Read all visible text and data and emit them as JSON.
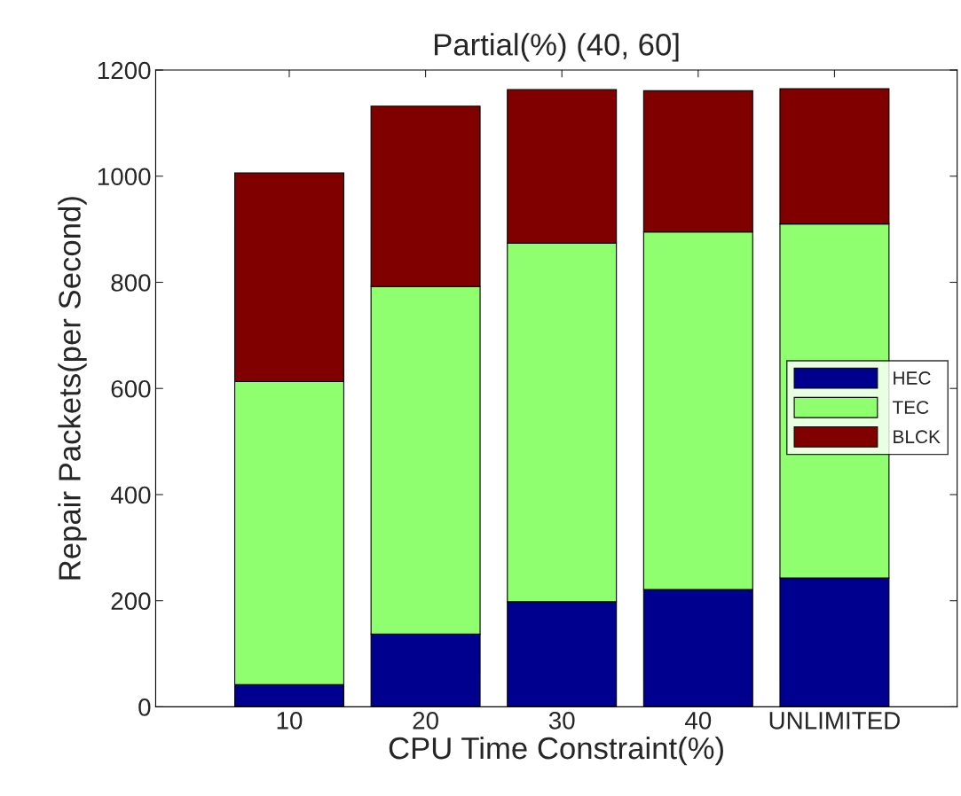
{
  "chart_data": {
    "type": "bar",
    "title": "Partial(%) (40, 60]",
    "xlabel": "CPU Time Constraint(%)",
    "ylabel": "Repair Packets(per Second)",
    "categories": [
      "10",
      "20",
      "30",
      "40",
      "UNLIMITED"
    ],
    "stacked": true,
    "series": [
      {
        "name": "HEC",
        "color": "#00008f",
        "values": [
          42,
          137,
          198,
          221,
          243
        ]
      },
      {
        "name": "TEC",
        "color": "#8fff6f",
        "values": [
          571,
          655,
          676,
          674,
          667
        ]
      },
      {
        "name": "BLCK",
        "color": "#800000",
        "values": [
          393,
          340,
          289,
          266,
          255
        ]
      }
    ],
    "ylim": [
      0,
      1200
    ],
    "yticks": [
      0,
      200,
      400,
      600,
      800,
      1000,
      1200
    ],
    "grid": false,
    "legend": "right"
  }
}
